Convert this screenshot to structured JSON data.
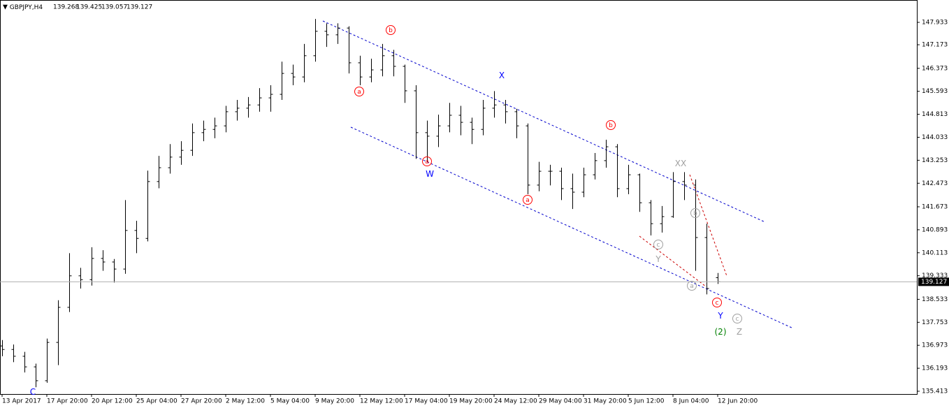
{
  "chart_data": {
    "type": "ohlc",
    "symbol": "GBPJPY,H4",
    "color": "#000000",
    "x": [
      0,
      4,
      8,
      12,
      16,
      20,
      24,
      28,
      32,
      36,
      40,
      44,
      48,
      52,
      56,
      60,
      64,
      68,
      72,
      76,
      80,
      84,
      88,
      92,
      96,
      100,
      104,
      108,
      112,
      116,
      120,
      124,
      128,
      132,
      136,
      140,
      144,
      148,
      152,
      156,
      160,
      164,
      168,
      172,
      176,
      180,
      184,
      188,
      192,
      196,
      200,
      204,
      208,
      212,
      216,
      220,
      224,
      228,
      232,
      236,
      240,
      244,
      248,
      252,
      256
    ],
    "open": [
      136.95,
      136.83,
      136.6,
      136.24,
      135.77,
      137.07,
      138.26,
      139.33,
      139.2,
      139.92,
      139.8,
      139.56,
      140.87,
      140.6,
      142.53,
      143,
      143.36,
      143.59,
      144.19,
      144.3,
      144.42,
      144.9,
      145.02,
      145.13,
      145.37,
      145.49,
      146.2,
      146.08,
      146.8,
      147.63,
      147.51,
      147.74,
      146.56,
      146.08,
      146.32,
      146.8,
      146.44,
      145.61,
      144.19,
      144.07,
      144.42,
      144.78,
      144.54,
      144.3,
      145.02,
      145.13,
      144.9,
      144.42,
      142.41,
      142.88,
      142.88,
      142.29,
      142.17,
      142.76,
      143.24,
      143.71,
      142.29,
      142.76,
      141.81,
      141.1,
      141.34,
      142.53,
      142.41,
      140.63,
      139.268
    ],
    "high": [
      137.15,
      137,
      136.75,
      136.35,
      137.2,
      138.5,
      140.1,
      139.6,
      140.3,
      140.2,
      139.9,
      141.9,
      141.2,
      142.9,
      143.4,
      143.8,
      143.9,
      144.5,
      144.6,
      144.7,
      145.1,
      145.3,
      145.4,
      145.7,
      145.8,
      146.6,
      146.5,
      147.2,
      148.05,
      147.9,
      147.9,
      147.8,
      146.8,
      146.7,
      147.2,
      147,
      146.5,
      145.8,
      144.6,
      144.8,
      145.2,
      145.1,
      144.7,
      145.3,
      145.6,
      145.3,
      145,
      144.5,
      143.2,
      143.1,
      143,
      142.8,
      143,
      143.5,
      143.95,
      143.8,
      143.1,
      142.8,
      141.9,
      141.7,
      142.85,
      142.85,
      142.6,
      141.1,
      139.425
    ],
    "low": [
      136.6,
      136.4,
      136.05,
      135.55,
      135.7,
      136.3,
      138.1,
      138.9,
      139,
      139.5,
      139.1,
      139.4,
      140.1,
      140.5,
      142.3,
      142.8,
      143.1,
      143.4,
      143.9,
      144,
      144.2,
      144.6,
      144.7,
      144.9,
      144.9,
      145.3,
      145.8,
      145.9,
      146.6,
      147.1,
      147.2,
      146.2,
      145.8,
      145.9,
      146.1,
      146.1,
      145.2,
      143.3,
      143.2,
      143.7,
      144.2,
      144.1,
      143.8,
      144.1,
      144.7,
      144.5,
      144,
      142.1,
      142.2,
      142.4,
      141.9,
      141.6,
      142,
      142.6,
      143,
      142,
      142.1,
      141.5,
      140.7,
      140.8,
      141.3,
      141.9,
      139.5,
      138.7,
      139.057
    ],
    "close": [
      136.83,
      136.6,
      136.24,
      135.77,
      137.07,
      138.26,
      139.33,
      139.2,
      139.92,
      139.8,
      139.56,
      140.87,
      140.6,
      142.53,
      143,
      143.36,
      143.59,
      144.19,
      144.3,
      144.42,
      144.9,
      145.02,
      145.13,
      145.37,
      145.49,
      146.2,
      146.08,
      146.8,
      147.63,
      147.51,
      147.74,
      146.56,
      146.08,
      146.32,
      146.8,
      146.44,
      145.61,
      144.19,
      144.07,
      144.42,
      144.78,
      144.54,
      144.3,
      145.02,
      145.13,
      144.9,
      144.42,
      142.41,
      142.88,
      142.88,
      142.29,
      142.17,
      142.76,
      143.24,
      143.71,
      142.29,
      142.76,
      141.81,
      141.1,
      141.34,
      142.53,
      142.41,
      140.63,
      138.9,
      139.127
    ],
    "xlim": [
      -0.75,
      327.25
    ],
    "ylim": [
      135.318,
      148.692
    ],
    "yticks": [
      147.933,
      147.173,
      146.373,
      145.593,
      144.813,
      144.033,
      143.253,
      142.473,
      141.673,
      140.893,
      140.113,
      139.333,
      138.533,
      137.753,
      136.973,
      136.193,
      135.413
    ],
    "xticks": [
      {
        "value": 0,
        "label": "13 Apr 2017"
      },
      {
        "value": 16,
        "label": "17 Apr 20:00"
      },
      {
        "value": 32,
        "label": "20 Apr 12:00"
      },
      {
        "value": 48,
        "label": "25 Apr 04:00"
      },
      {
        "value": 64,
        "label": "27 Apr 20:00"
      },
      {
        "value": 80,
        "label": "2 May 12:00"
      },
      {
        "value": 96,
        "label": "5 May 04:00"
      },
      {
        "value": 112,
        "label": "9 May 20:00"
      },
      {
        "value": 128,
        "label": "12 May 12:00"
      },
      {
        "value": 144,
        "label": "17 May 04:00"
      },
      {
        "value": 160,
        "label": "19 May 20:00"
      },
      {
        "value": 176,
        "label": "24 May 12:00"
      },
      {
        "value": 192,
        "label": "29 May 04:00"
      },
      {
        "value": 208,
        "label": "31 May 20:00"
      },
      {
        "value": 224,
        "label": "5 Jun 12:00"
      },
      {
        "value": 240,
        "label": "8 Jun 04:00"
      },
      {
        "value": 256,
        "label": "12 Jun 20:00"
      }
    ],
    "annotations": [
      {
        "text": "C",
        "color": "#0000ff"
      },
      {
        "text": "b",
        "color": "#ff0000",
        "circled": true
      },
      {
        "text": "a",
        "color": "#ff0000",
        "circled": true
      },
      {
        "text": "X",
        "color": "#0000ff"
      },
      {
        "text": "a",
        "color": "#ff0000",
        "circled": true
      },
      {
        "text": "W",
        "color": "#0000ff"
      },
      {
        "text": "b",
        "color": "#ff0000",
        "circled": true
      },
      {
        "text": "a",
        "color": "#ff0000",
        "circled": true
      },
      {
        "text": "XX",
        "color": "#a0a0a0"
      },
      {
        "text": "b",
        "color": "#a0a0a0",
        "circled": true
      },
      {
        "text": "c",
        "color": "#a0a0a0",
        "circled": true
      },
      {
        "text": "Y",
        "color": "#a0a0a0"
      },
      {
        "text": "a",
        "color": "#a0a0a0",
        "circled": true
      },
      {
        "text": "c",
        "color": "#ff0000",
        "circled": true
      },
      {
        "text": "Y",
        "color": "#0000ff"
      },
      {
        "text": "c",
        "color": "#a0a0a0",
        "circled": true
      },
      {
        "text": "(2)",
        "color": "#008000"
      },
      {
        "text": "Z",
        "color": "#a0a0a0"
      }
    ]
  }
}
